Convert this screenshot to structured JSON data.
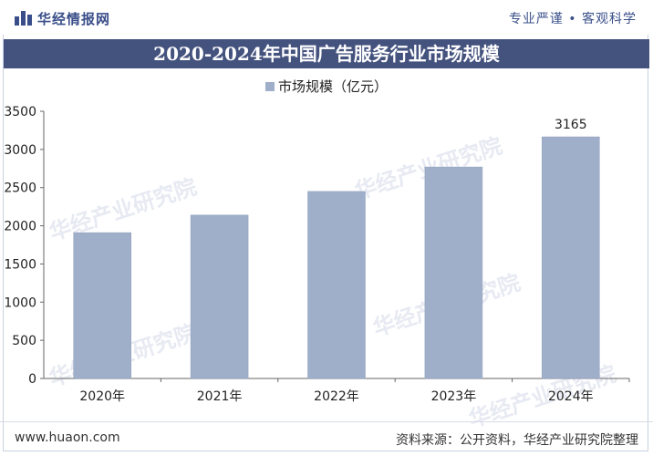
{
  "brand": {
    "logo_text": "华经情报网",
    "slogan": "专业严谨 • 客观科学"
  },
  "footer": {
    "site": "www.huaon.com",
    "source": "资料来源：公开资料，华经产业研究院整理"
  },
  "watermark": "华经产业研究院",
  "colors": {
    "title_bar": "#44527e",
    "bar": "#9fafc9",
    "bar_stroke": "#8d9dbb",
    "brand": "#3a4f8a"
  },
  "chart_data": {
    "type": "bar",
    "title": "2020-2024年中国广告服务行业市场规模",
    "categories": [
      "2020年",
      "2021年",
      "2022年",
      "2023年",
      "2024年"
    ],
    "series": [
      {
        "name": "市场规模（亿元）",
        "values": [
          1910,
          2140,
          2450,
          2770,
          3165
        ]
      }
    ],
    "data_labels": [
      null,
      null,
      null,
      null,
      "3165"
    ],
    "ylim": [
      0,
      3500
    ],
    "yticks": [
      0,
      500,
      1000,
      1500,
      2000,
      2500,
      3000,
      3500
    ],
    "grid": false,
    "legend": "top-center"
  }
}
